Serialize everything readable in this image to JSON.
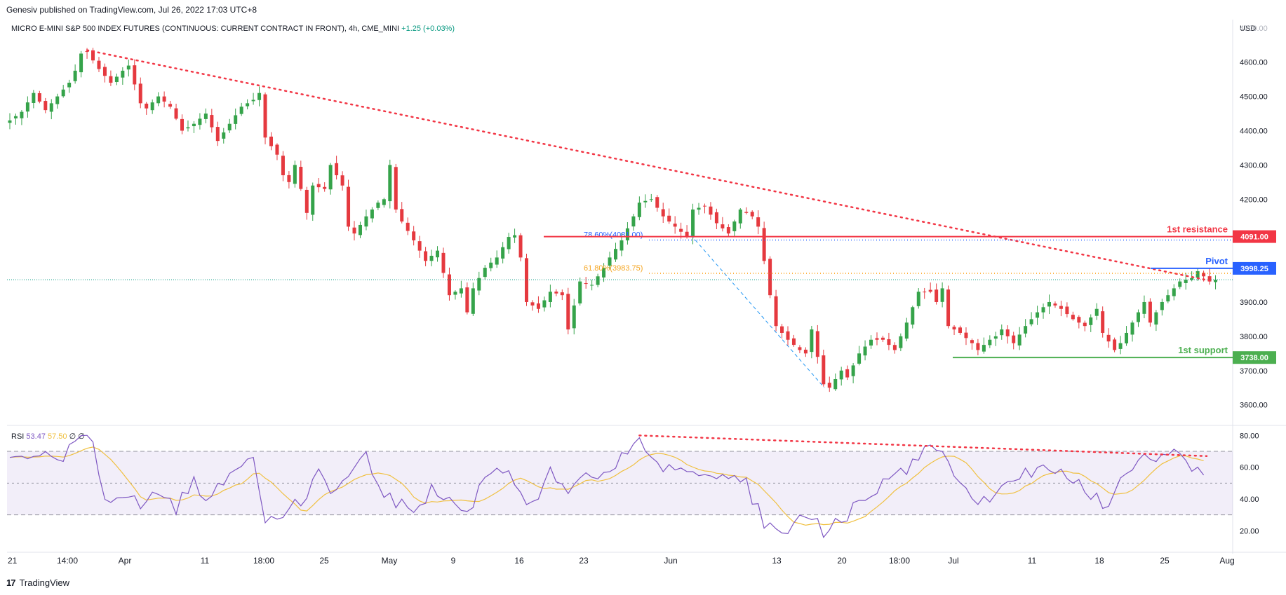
{
  "header": {
    "published": "Genesiv published on TradingView.com, Jul 26, 2022 17:03 UTC+8"
  },
  "instrument": {
    "title": "MICRO E-MINI S&P 500 INDEX FUTURES (CONTINUOUS: CURRENT CONTRACT IN FRONT), 4h, CME_MINI",
    "change": "+1.25 (+0.03%)"
  },
  "footer": {
    "brand": "TradingView"
  },
  "colors": {
    "up": "#26a69a",
    "up_body": "#35a34a",
    "down": "#e5393f",
    "resistance": "#f23645",
    "pivot": "#2962ff",
    "support": "#4caf50",
    "fib786": "#2962ff",
    "fib618": "#ff9800",
    "rsi": "#7e57c2",
    "rsi_ma": "#f0c040"
  },
  "chart_data": [
    {
      "type": "candlestick",
      "title": "MICRO E-MINI S&P 500 INDEX FUTURES (CONTINUOUS: CURRENT CONTRACT IN FRONT), 4h, CME_MINI",
      "currency": "USD",
      "ylim": [
        3540,
        4720
      ],
      "y_ticks": [
        "4700.00",
        "4600.00",
        "4500.00",
        "4400.00",
        "4300.00",
        "4200.00",
        "3900.00",
        "3800.00",
        "3700.00",
        "3600.00"
      ],
      "x_ticks": [
        "21",
        "14:00",
        "Apr",
        "11",
        "18:00",
        "25",
        "May",
        "9",
        "16",
        "23",
        "Jun",
        "13",
        "20",
        "18:00",
        "Jul",
        "11",
        "18",
        "25",
        "Aug"
      ],
      "path_anchors": [
        [
          0,
          4430
        ],
        [
          2,
          4455
        ],
        [
          4,
          4510
        ],
        [
          6,
          4460
        ],
        [
          8,
          4500
        ],
        [
          10,
          4540
        ],
        [
          11,
          4575
        ],
        [
          12,
          4625
        ],
        [
          13,
          4630
        ],
        [
          15,
          4580
        ],
        [
          17,
          4540
        ],
        [
          19,
          4575
        ],
        [
          20,
          4590
        ],
        [
          22,
          4480
        ],
        [
          23,
          4465
        ],
        [
          25,
          4500
        ],
        [
          27,
          4470
        ],
        [
          29,
          4400
        ],
        [
          31,
          4420
        ],
        [
          33,
          4450
        ],
        [
          35,
          4370
        ],
        [
          37,
          4420
        ],
        [
          39,
          4470
        ],
        [
          41,
          4490
        ],
        [
          42,
          4510
        ],
        [
          43,
          4380
        ],
        [
          45,
          4330
        ],
        [
          46,
          4270
        ],
        [
          47,
          4250
        ],
        [
          48,
          4300
        ],
        [
          50,
          4160
        ],
        [
          51,
          4240
        ],
        [
          53,
          4230
        ],
        [
          54,
          4300
        ],
        [
          56,
          4240
        ],
        [
          57,
          4120
        ],
        [
          58,
          4100
        ],
        [
          60,
          4150
        ],
        [
          62,
          4190
        ],
        [
          63,
          4200
        ],
        [
          64,
          4300
        ],
        [
          65,
          4170
        ],
        [
          66,
          4135
        ],
        [
          68,
          4080
        ],
        [
          70,
          4020
        ],
        [
          72,
          4050
        ],
        [
          74,
          3920
        ],
        [
          76,
          3940
        ],
        [
          77,
          3870
        ],
        [
          78,
          3940
        ],
        [
          80,
          4000
        ],
        [
          82,
          4030
        ],
        [
          84,
          4090
        ],
        [
          85,
          4095
        ],
        [
          86,
          4030
        ],
        [
          87,
          3900
        ],
        [
          89,
          3880
        ],
        [
          91,
          3930
        ],
        [
          93,
          3920
        ],
        [
          94,
          3820
        ],
        [
          96,
          3960
        ],
        [
          98,
          3950
        ],
        [
          100,
          4000
        ],
        [
          101,
          4030
        ],
        [
          103,
          4080
        ],
        [
          105,
          4150
        ],
        [
          106,
          4190
        ],
        [
          108,
          4200
        ],
        [
          110,
          4150
        ],
        [
          112,
          4120
        ],
        [
          114,
          4090
        ],
        [
          115,
          4170
        ],
        [
          117,
          4180
        ],
        [
          119,
          4130
        ],
        [
          121,
          4100
        ],
        [
          123,
          4170
        ],
        [
          125,
          4150
        ],
        [
          126,
          4120
        ],
        [
          127,
          4020
        ],
        [
          128,
          3920
        ],
        [
          129,
          3830
        ],
        [
          131,
          3790
        ],
        [
          133,
          3760
        ],
        [
          134,
          3750
        ],
        [
          135,
          3820
        ],
        [
          137,
          3660
        ],
        [
          138,
          3650
        ],
        [
          140,
          3700
        ],
        [
          141,
          3680
        ],
        [
          143,
          3750
        ],
        [
          145,
          3790
        ],
        [
          147,
          3790
        ],
        [
          149,
          3760
        ],
        [
          151,
          3840
        ],
        [
          153,
          3930
        ],
        [
          155,
          3930
        ],
        [
          156,
          3900
        ],
        [
          157,
          3940
        ],
        [
          158,
          3830
        ],
        [
          160,
          3810
        ],
        [
          162,
          3780
        ],
        [
          163,
          3760
        ],
        [
          165,
          3790
        ],
        [
          166,
          3800
        ],
        [
          167,
          3820
        ],
        [
          169,
          3780
        ],
        [
          171,
          3830
        ],
        [
          173,
          3870
        ],
        [
          175,
          3900
        ],
        [
          177,
          3880
        ],
        [
          179,
          3850
        ],
        [
          181,
          3830
        ],
        [
          183,
          3880
        ],
        [
          184,
          3810
        ],
        [
          186,
          3760
        ],
        [
          187,
          3780
        ],
        [
          189,
          3840
        ],
        [
          191,
          3900
        ],
        [
          192,
          3840
        ],
        [
          193,
          3870
        ],
        [
          194,
          3900
        ],
        [
          195,
          3920
        ],
        [
          197,
          3960
        ],
        [
          199,
          3970
        ],
        [
          200,
          3990
        ],
        [
          201,
          3975
        ],
        [
          202,
          3960
        ],
        [
          203,
          3965
        ]
      ],
      "candle_count": 204,
      "candle_note": "4h OHLC candles; values interpolated around the anchor path (close levels)",
      "levels": [
        {
          "name": "1st resistance",
          "value": 4091.0,
          "label": "4091.00"
        },
        {
          "name": "Pivot",
          "value": 3998.25,
          "label": "3998.25"
        },
        {
          "name": "1st support",
          "value": 3738.0,
          "label": "3738.00"
        }
      ],
      "last_price_level": 3965,
      "fibonacci": [
        {
          "label": "78.60%(4081.00)",
          "value": 4081.0
        },
        {
          "label": "61.80%(3983.75)",
          "value": 3983.75
        }
      ],
      "trendline": {
        "from_price": 4635,
        "to_price": 3960,
        "style": "dotted"
      },
      "fib_leg": {
        "from_price": 4095,
        "to_price": 3650
      }
    },
    {
      "type": "line",
      "title": "RSI",
      "rsi_value": "53.47",
      "ma_value": "57.50",
      "extra": "∅ ∅",
      "ylim": [
        10,
        85
      ],
      "y_ticks": [
        "80.00",
        "60.00",
        "40.00",
        "20.00"
      ],
      "bands": {
        "upper": 70,
        "middle": 50,
        "lower": 30
      },
      "rsi_anchors": [
        [
          0,
          65
        ],
        [
          5,
          70
        ],
        [
          8,
          60
        ],
        [
          12,
          80
        ],
        [
          14,
          72
        ],
        [
          16,
          40
        ],
        [
          19,
          45
        ],
        [
          22,
          35
        ],
        [
          25,
          45
        ],
        [
          28,
          35
        ],
        [
          31,
          50
        ],
        [
          34,
          40
        ],
        [
          37,
          55
        ],
        [
          39,
          65
        ],
        [
          41,
          68
        ],
        [
          43,
          30
        ],
        [
          45,
          25
        ],
        [
          47,
          35
        ],
        [
          50,
          40
        ],
        [
          52,
          55
        ],
        [
          55,
          45
        ],
        [
          57,
          55
        ],
        [
          60,
          65
        ],
        [
          62,
          50
        ],
        [
          64,
          40
        ],
        [
          66,
          35
        ],
        [
          68,
          35
        ],
        [
          71,
          45
        ],
        [
          74,
          40
        ],
        [
          77,
          30
        ],
        [
          80,
          55
        ],
        [
          82,
          60
        ],
        [
          84,
          60
        ],
        [
          86,
          40
        ],
        [
          89,
          35
        ],
        [
          91,
          60
        ],
        [
          94,
          40
        ],
        [
          96,
          50
        ],
        [
          98,
          55
        ],
        [
          100,
          55
        ],
        [
          102,
          60
        ],
        [
          104,
          70
        ],
        [
          106,
          80
        ],
        [
          108,
          65
        ],
        [
          110,
          60
        ],
        [
          112,
          55
        ],
        [
          114,
          60
        ],
        [
          116,
          55
        ],
        [
          118,
          55
        ],
        [
          120,
          60
        ],
        [
          122,
          55
        ],
        [
          124,
          55
        ],
        [
          125,
          40
        ],
        [
          127,
          25
        ],
        [
          129,
          18
        ],
        [
          131,
          15
        ],
        [
          133,
          25
        ],
        [
          135,
          30
        ],
        [
          137,
          20
        ],
        [
          139,
          25
        ],
        [
          141,
          30
        ],
        [
          143,
          40
        ],
        [
          145,
          40
        ],
        [
          147,
          50
        ],
        [
          149,
          55
        ],
        [
          151,
          60
        ],
        [
          153,
          65
        ],
        [
          155,
          72
        ],
        [
          157,
          70
        ],
        [
          159,
          50
        ],
        [
          161,
          45
        ],
        [
          163,
          40
        ],
        [
          165,
          40
        ],
        [
          167,
          45
        ],
        [
          169,
          55
        ],
        [
          171,
          55
        ],
        [
          173,
          60
        ],
        [
          175,
          55
        ],
        [
          177,
          60
        ],
        [
          179,
          50
        ],
        [
          181,
          45
        ],
        [
          183,
          40
        ],
        [
          185,
          35
        ],
        [
          187,
          55
        ],
        [
          189,
          60
        ],
        [
          191,
          68
        ],
        [
          193,
          65
        ],
        [
          195,
          65
        ],
        [
          197,
          68
        ],
        [
          199,
          60
        ],
        [
          200,
          56
        ],
        [
          201,
          53
        ]
      ],
      "divergence_line": {
        "from": 80,
        "to": 67,
        "style": "dotted"
      }
    }
  ]
}
